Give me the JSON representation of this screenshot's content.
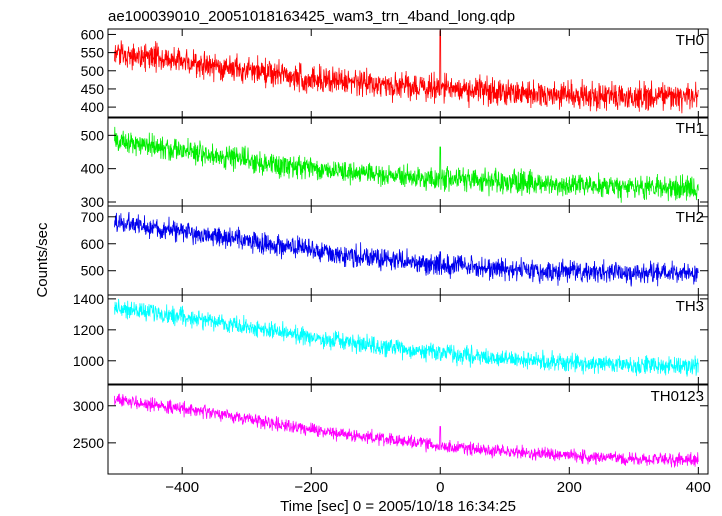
{
  "title": "ae100039010_20051018163425_wam3_trn_4band_long.qdp",
  "xlabel": "Time [sec] 0 = 2005/10/18 16:34:25",
  "ylabel": "Counts/sec",
  "chart_data": {
    "type": "line",
    "title": "ae100039010_20051018163425_wam3_trn_4band_long.qdp",
    "xlabel": "Time [sec] 0 = 2005/10/18 16:34:25",
    "ylabel": "Counts/sec",
    "xlim": [
      -515,
      415
    ],
    "x_ticks": [
      -400,
      -200,
      0,
      200,
      400
    ],
    "x_tick_labels": [
      "−400",
      "−200",
      "0",
      "200",
      "400"
    ],
    "x_start": -505,
    "x_end": 400,
    "grid": false,
    "panels": [
      {
        "name": "TH0",
        "color": "#ff0000",
        "ylim": [
          370,
          615
        ],
        "y_ticks": [
          400,
          450,
          500,
          550,
          600
        ],
        "trend": {
          "x": [
            -505,
            -400,
            -300,
            -200,
            -100,
            0,
            100,
            200,
            300,
            400
          ],
          "y": [
            548,
            525,
            500,
            478,
            462,
            452,
            442,
            433,
            428,
            430
          ]
        },
        "noise": 55,
        "spikes": [
          {
            "x": 0,
            "y": 610
          }
        ]
      },
      {
        "name": "TH1",
        "color": "#00ee00",
        "ylim": [
          288,
          555
        ],
        "y_ticks": [
          300,
          400,
          500
        ],
        "trend": {
          "x": [
            -505,
            -400,
            -300,
            -200,
            -100,
            0,
            100,
            200,
            300,
            400
          ],
          "y": [
            485,
            455,
            425,
            400,
            382,
            370,
            360,
            352,
            345,
            342
          ]
        },
        "noise": 52,
        "spikes": [
          {
            "x": 0,
            "y": 465
          }
        ]
      },
      {
        "name": "TH2",
        "color": "#0000ee",
        "ylim": [
          410,
          740
        ],
        "y_ticks": [
          500,
          600,
          700
        ],
        "trend": {
          "x": [
            -505,
            -400,
            -300,
            -200,
            -100,
            0,
            100,
            200,
            300,
            400
          ],
          "y": [
            680,
            645,
            610,
            575,
            545,
            522,
            505,
            495,
            490,
            488
          ]
        },
        "noise": 58,
        "spikes": [
          {
            "x": 0,
            "y": 570
          }
        ]
      },
      {
        "name": "TH3",
        "color": "#00ffff",
        "ylim": [
          850,
          1425
        ],
        "y_ticks": [
          1000,
          1200,
          1400
        ],
        "trend": {
          "x": [
            -505,
            -400,
            -300,
            -200,
            -100,
            0,
            100,
            200,
            300,
            400
          ],
          "y": [
            1345,
            1285,
            1220,
            1150,
            1090,
            1050,
            1010,
            985,
            970,
            965
          ]
        },
        "noise": 85,
        "spikes": []
      },
      {
        "name": "TH0123",
        "color": "#ff00ff",
        "ylim": [
          2080,
          3280
        ],
        "y_ticks": [
          2500,
          3000
        ],
        "trend": {
          "x": [
            -505,
            -400,
            -300,
            -200,
            -100,
            0,
            100,
            200,
            300,
            400
          ],
          "y": [
            3080,
            2960,
            2830,
            2680,
            2560,
            2460,
            2380,
            2330,
            2280,
            2270
          ]
        },
        "noise": 130,
        "spikes": [
          {
            "x": 0,
            "y": 2720
          }
        ]
      }
    ]
  }
}
